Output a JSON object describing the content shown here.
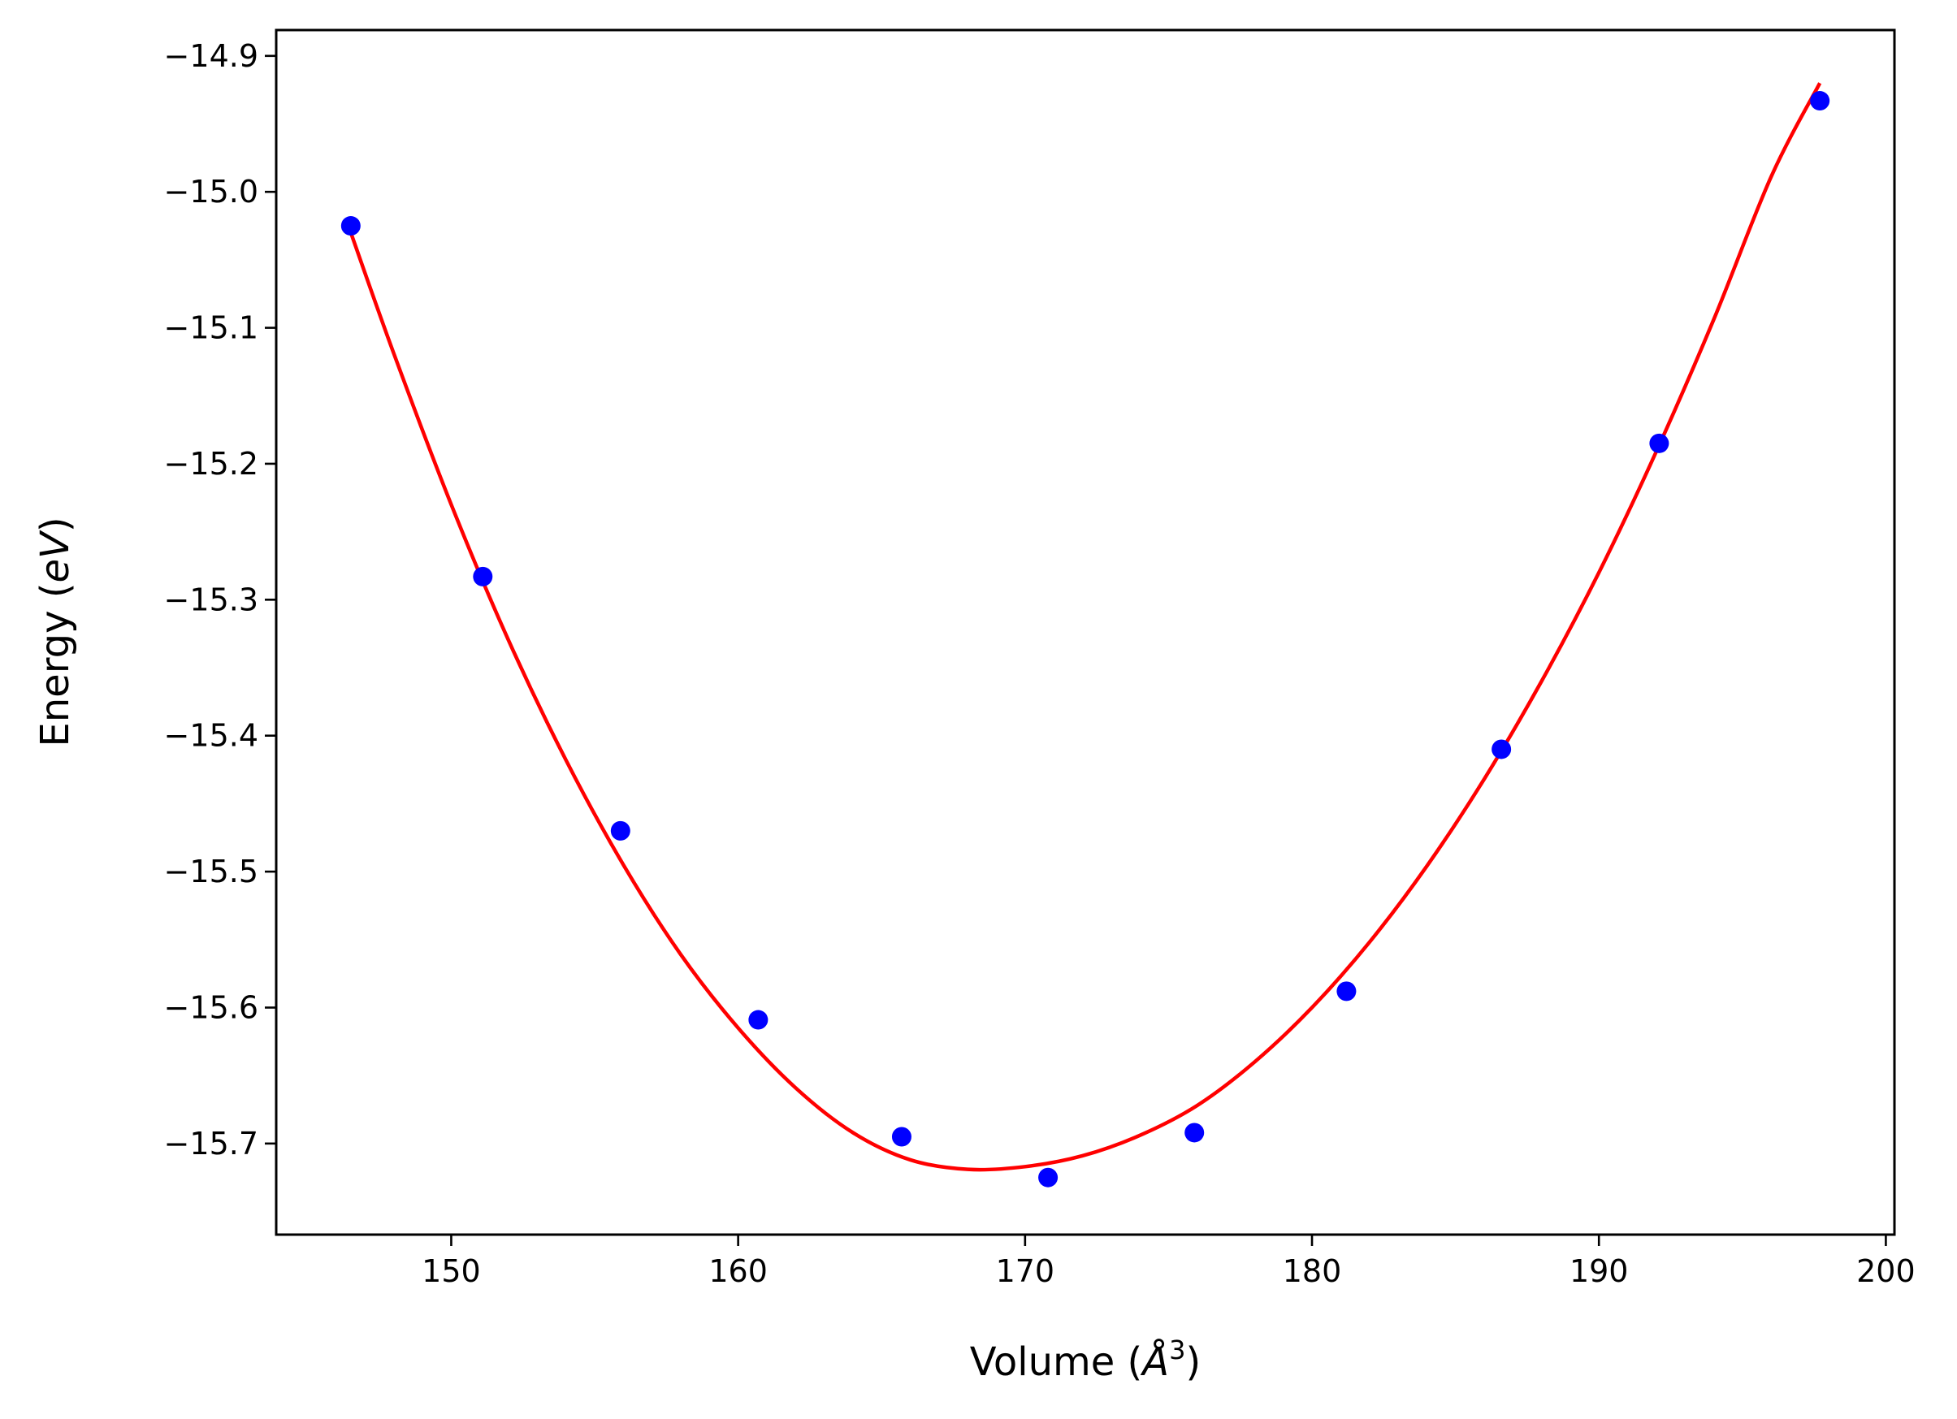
{
  "chart_data": {
    "type": "scatter",
    "title": "",
    "xlabel_prefix": "Volume (",
    "xlabel_italic": "Å",
    "xlabel_sup": "3",
    "xlabel_suffix": ")",
    "ylabel_prefix": "Energy (",
    "ylabel_italic": "eV",
    "ylabel_suffix": ")",
    "xlim": [
      143.9,
      200.3
    ],
    "ylim": [
      -15.767,
      -14.881
    ],
    "xticks": [
      150,
      160,
      170,
      180,
      190,
      200
    ],
    "xtick_labels": [
      "150",
      "160",
      "170",
      "180",
      "190",
      "200"
    ],
    "yticks": [
      -15.7,
      -15.6,
      -15.5,
      -15.4,
      -15.3,
      -15.2,
      -15.1,
      -15.0,
      -14.9
    ],
    "ytick_labels": [
      "−15.7",
      "−15.6",
      "−15.5",
      "−15.4",
      "−15.3",
      "−15.2",
      "−15.1",
      "−15.0",
      "−14.9"
    ],
    "grid": false,
    "series": [
      {
        "kind": "scatter",
        "color": "#0000ff",
        "x": [
          146.5,
          151.1,
          155.9,
          160.7,
          165.7,
          170.8,
          175.9,
          181.2,
          186.6,
          192.1,
          197.7
        ],
        "y": [
          -15.025,
          -15.283,
          -15.47,
          -15.609,
          -15.695,
          -15.725,
          -15.692,
          -15.588,
          -15.41,
          -15.185,
          -14.933
        ]
      },
      {
        "kind": "line",
        "color": "#ff0000",
        "x": [
          146.5,
          148.0,
          150.0,
          152.0,
          154.0,
          156.0,
          158.0,
          160.0,
          162.0,
          164.0,
          166.0,
          168.0,
          170.0,
          172.0,
          174.0,
          176.0,
          178.0,
          180.0,
          182.0,
          184.0,
          186.0,
          188.0,
          190.0,
          192.0,
          194.0,
          196.0,
          197.7
        ],
        "y": [
          -15.03,
          -15.119,
          -15.23,
          -15.33,
          -15.418,
          -15.495,
          -15.561,
          -15.615,
          -15.659,
          -15.692,
          -15.712,
          -15.719,
          -15.717,
          -15.709,
          -15.694,
          -15.672,
          -15.64,
          -15.6,
          -15.552,
          -15.496,
          -15.432,
          -15.36,
          -15.28,
          -15.191,
          -15.094,
          -14.989,
          -14.92
        ]
      }
    ]
  }
}
